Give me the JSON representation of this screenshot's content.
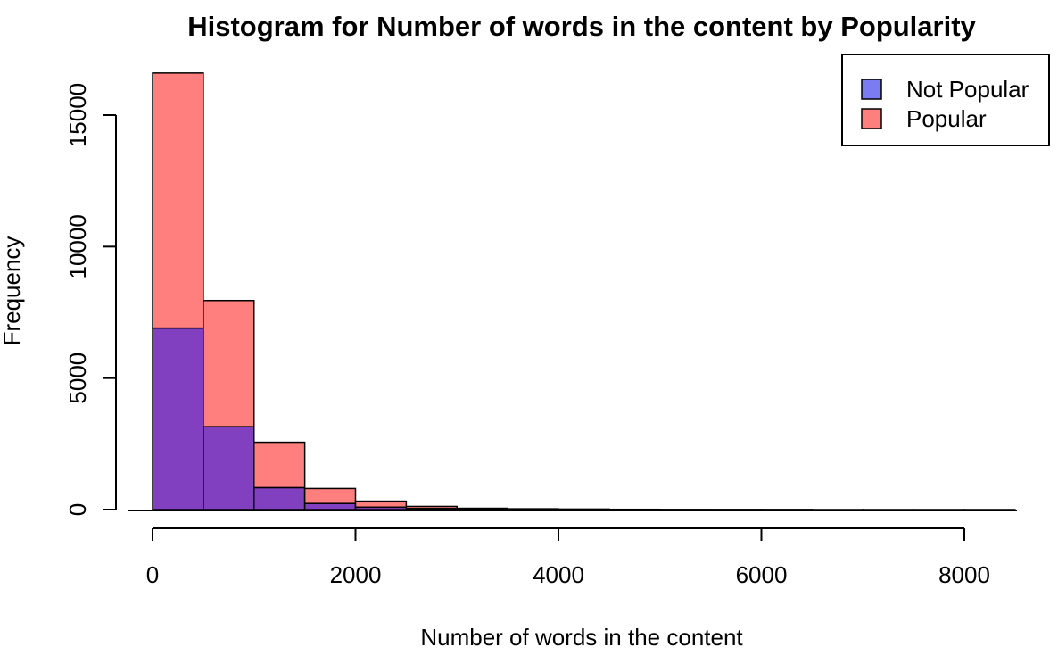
{
  "chart_data": {
    "type": "histogram",
    "title": "Histogram for Number of words in the content by Popularity",
    "xlabel": "Number of words in the content",
    "ylabel": "Frequency",
    "x_ticks": [
      "0",
      "2000",
      "4000",
      "6000",
      "8000"
    ],
    "y_ticks": [
      "0",
      "5000",
      "10000",
      "15000"
    ],
    "xlim": [
      0,
      8500
    ],
    "ylim": [
      0,
      16600
    ],
    "overlay": true,
    "grid": false,
    "legend_position": "top-right",
    "bins": [
      [
        0,
        500
      ],
      [
        500,
        1000
      ],
      [
        1000,
        1500
      ],
      [
        1500,
        2000
      ],
      [
        2000,
        2500
      ],
      [
        2500,
        3000
      ],
      [
        3000,
        3500
      ],
      [
        3500,
        4000
      ],
      [
        4000,
        4500
      ],
      [
        4500,
        5000
      ],
      [
        5000,
        5500
      ],
      [
        5500,
        6000
      ],
      [
        6000,
        6500
      ],
      [
        6500,
        7000
      ],
      [
        7000,
        7500
      ],
      [
        7500,
        8000
      ],
      [
        8000,
        8500
      ]
    ],
    "series": [
      {
        "name": "Not Popular",
        "color": "#7B7BF2",
        "values": [
          6900,
          3150,
          830,
          230,
          90,
          40,
          15,
          10,
          5,
          2,
          1,
          1,
          1,
          0,
          0,
          0,
          1
        ]
      },
      {
        "name": "Popular",
        "color": "#FF7F7F",
        "values": [
          16600,
          7950,
          2560,
          800,
          320,
          120,
          50,
          30,
          20,
          10,
          5,
          3,
          2,
          1,
          1,
          1,
          1
        ]
      }
    ],
    "overlap_color": "#8040C0"
  }
}
